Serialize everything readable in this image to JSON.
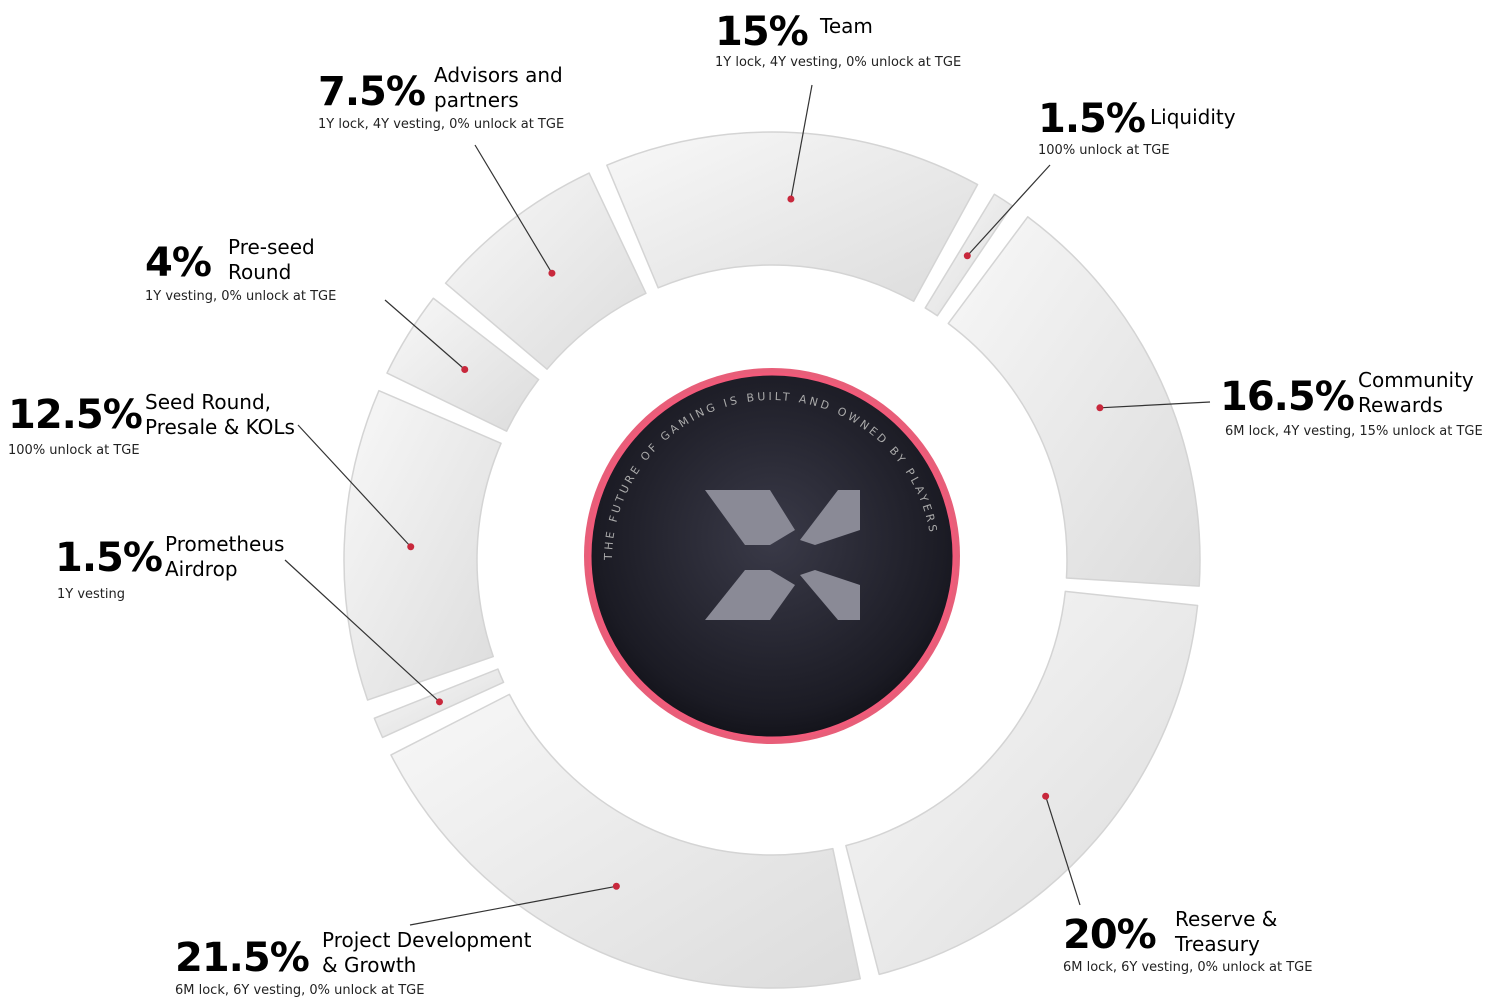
{
  "chart_data": {
    "type": "pie",
    "categories": [
      "Team",
      "Liquidity",
      "Community Rewards",
      "Reserve & Treasury",
      "Project Development & Growth",
      "Prometheus Airdrop",
      "Seed Round, Presale & KOLs",
      "Pre-seed Round",
      "Advisors and partners"
    ],
    "values": [
      15,
      1.5,
      16.5,
      20,
      21.5,
      1.5,
      12.5,
      4,
      7.5
    ],
    "value_labels": [
      "15%",
      "1.5%",
      "16.5%",
      "20%",
      "21.5%",
      "1.5%",
      "12.5%",
      "4%",
      "7.5%"
    ],
    "descriptions": [
      "1Y lock, 4Y vesting, 0% unlock at TGE",
      "100% unlock at TGE",
      "6M lock, 4Y vesting, 15% unlock at TGE",
      "6M lock, 6Y vesting, 0% unlock at TGE",
      "6M lock, 6Y vesting, 0% unlock at TGE",
      "1Y vesting",
      "100% unlock at TGE",
      "1Y vesting, 0% unlock at TGE",
      "1Y lock, 4Y vesting, 0% unlock at TGE"
    ],
    "color": "#ececec",
    "dot_color": "#c8283c",
    "center_text": "THE FUTURE OF GAMING IS BUILT AND OWNED BY PLAYERS"
  }
}
